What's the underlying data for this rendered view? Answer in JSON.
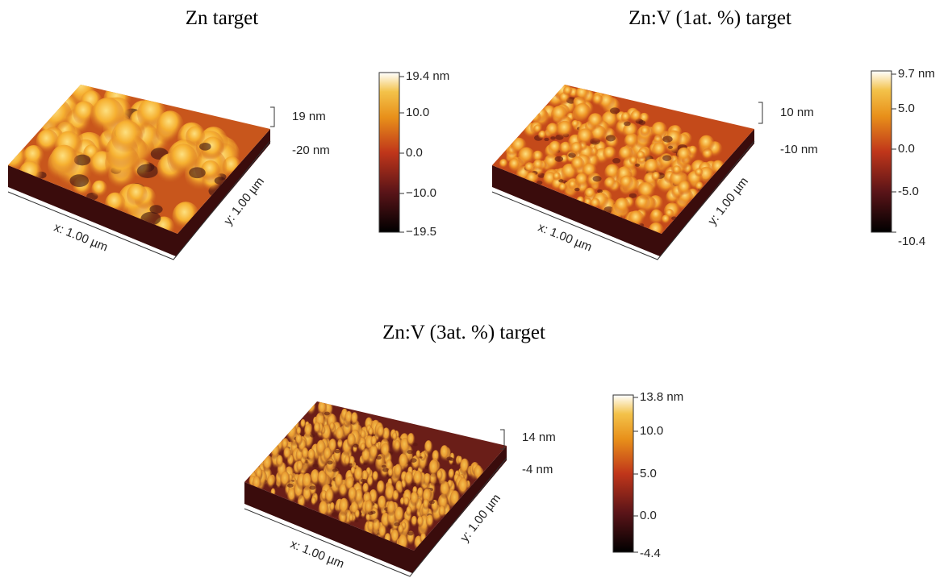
{
  "panels": [
    {
      "title": "Zn target",
      "z_labels": [
        "19 nm",
        "-20 nm"
      ],
      "x_label": "x: 1.00 µm",
      "y_label": "y: 1.00 µm",
      "colorbar_labels": [
        "19.4 nm",
        "10.0",
        "0.0",
        "−10.0",
        "−19.5"
      ]
    },
    {
      "title": "Zn:V (1at. %) target",
      "z_labels": [
        "10 nm",
        "-10 nm"
      ],
      "x_label": "x: 1.00 µm",
      "y_label": "y: 1.00 µm",
      "colorbar_labels": [
        "9.7 nm",
        "5.0",
        "0.0",
        "-5.0",
        "-10.4"
      ]
    },
    {
      "title": "Zn:V (3at. %) target",
      "z_labels": [
        "14 nm",
        "-4 nm"
      ],
      "x_label": "x: 1.00 µm",
      "y_label": "y: 1.00 µm",
      "colorbar_labels": [
        "13.8 nm",
        "10.0",
        "5.0",
        "0.0",
        "-4.4"
      ]
    }
  ]
}
